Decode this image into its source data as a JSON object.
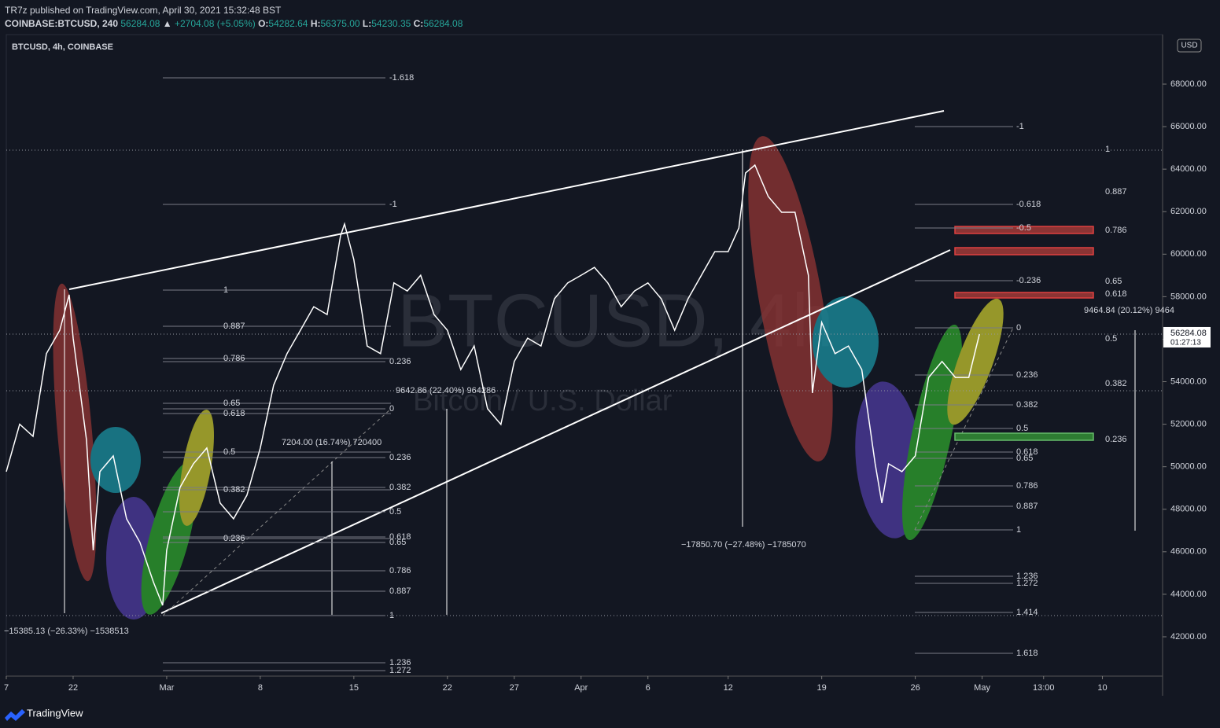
{
  "header": {
    "publisher": "TR7z published on TradingView.com, April 30, 2021 15:32:48 BST",
    "symbol": "COINBASE:BTCUSD, 240",
    "last": "56284.08",
    "change": "+2704.08 (+5.05%)",
    "o_label": "O:",
    "o": "54282.64",
    "h_label": "H:",
    "h": "56375.00",
    "l_label": "L:",
    "l": "54230.35",
    "c_label": "C:",
    "c": "56284.08"
  },
  "footer": {
    "brand": "TradingView"
  },
  "chart_data": {
    "type": "line",
    "title": "BTCUSD, 4h, COINBASE",
    "watermark": "BTCUSD, 4h",
    "watermark_sub": "Bitcoin / U.S. Dollar",
    "currency": "USD",
    "price_tag": "56284.08",
    "countdown": "01:27:13",
    "color": "#ffffff",
    "x": [
      17,
      18,
      19,
      20,
      21,
      21.7,
      22,
      23,
      23.5,
      24,
      25,
      26,
      27,
      28,
      28.7,
      29,
      30,
      31,
      32,
      33,
      34,
      35,
      36,
      37,
      38,
      39,
      40,
      41,
      42,
      42.3,
      43,
      44,
      45,
      46,
      47,
      48,
      49,
      50,
      51,
      52,
      53,
      54,
      55,
      56,
      57,
      58,
      59,
      60,
      61,
      62,
      63,
      64,
      65,
      66,
      67,
      68,
      69,
      70,
      71,
      71.8,
      72.3,
      73,
      74,
      75,
      76,
      77,
      77.3,
      78,
      79,
      80,
      81,
      82,
      82.5,
      83,
      84,
      85,
      86,
      87,
      88,
      89,
      89.8
    ],
    "values": [
      49770,
      52000,
      51430,
      55320,
      56420,
      58090,
      56050,
      51250,
      46070,
      49770,
      50510,
      47550,
      46440,
      44590,
      43480,
      46070,
      49030,
      50140,
      50880,
      48290,
      47550,
      48660,
      50880,
      53840,
      55320,
      56420,
      57530,
      57160,
      60860,
      61420,
      59750,
      55680,
      55320,
      58650,
      58270,
      59010,
      57160,
      56420,
      54570,
      55680,
      52730,
      51990,
      54950,
      56050,
      55680,
      57900,
      58650,
      59010,
      59380,
      58650,
      57530,
      58270,
      58650,
      57900,
      56420,
      57900,
      59010,
      60120,
      60120,
      61230,
      63820,
      64190,
      62710,
      61970,
      61970,
      59010,
      53470,
      56790,
      55320,
      55680,
      54570,
      50140,
      48290,
      50140,
      49770,
      50510,
      54200,
      54950,
      54200,
      54200,
      56240
    ],
    "xlim": [
      17,
      103.5
    ],
    "ylim": [
      40150,
      70330
    ],
    "xticks": [
      {
        "value": 17,
        "label": "7"
      },
      22,
      {
        "value": 29,
        "label": "Mar"
      },
      {
        "value": 36,
        "label": "8"
      },
      {
        "value": 43,
        "label": "15"
      },
      {
        "value": 50,
        "label": "22"
      },
      {
        "value": 55,
        "label": "27"
      },
      {
        "value": 60,
        "label": "Apr"
      },
      {
        "value": 65,
        "label": "6"
      },
      {
        "value": 71,
        "label": "12"
      },
      {
        "value": 78,
        "label": "19"
      },
      {
        "value": 85,
        "label": "26"
      },
      {
        "value": 90,
        "label": "May"
      },
      {
        "value": 94.6,
        "label": "13:00"
      },
      {
        "value": 99,
        "label": "10"
      }
    ],
    "yticks": [
      {
        "value": 42000,
        "label": "42000.00"
      },
      {
        "value": 44000,
        "label": "44000.00"
      },
      {
        "value": 46000,
        "label": "46000.00"
      },
      {
        "value": 48000,
        "label": "48000.00"
      },
      {
        "value": 50000,
        "label": "50000.00"
      },
      {
        "value": 52000,
        "label": "52000.00"
      },
      {
        "value": 54000,
        "label": "54000.00"
      },
      {
        "value": 56000,
        "label": "56000.00"
      },
      {
        "value": 58000,
        "label": "58000.00"
      },
      {
        "value": 60000,
        "label": "60000.00"
      },
      {
        "value": 62000,
        "label": "62000.00"
      },
      {
        "value": 64000,
        "label": "64000.00"
      },
      {
        "value": 66000,
        "label": "66000.00"
      },
      {
        "value": 68000,
        "label": "68000.00"
      }
    ],
    "fib_sets": [
      [
        "-1.618",
        "-1",
        "0.236",
        "0",
        "0.236",
        "0.382",
        "0.5",
        "0.618",
        "0.65",
        "0.786",
        "0.887",
        "1",
        "1.236",
        "1.272"
      ],
      [
        "1",
        "0.887",
        "0.786",
        "0.65",
        "0.618",
        "0.5",
        "0.382",
        "0.236"
      ],
      [
        "-1",
        "-0.618",
        "-0.5",
        "-0.236",
        "0",
        "0.236",
        "0.382",
        "0.5",
        "0.618",
        "0.65",
        "0.786",
        "0.887",
        "1",
        "1.236",
        "1.272",
        "1.414",
        "1.618"
      ],
      [
        "1",
        "0.887",
        "0.786",
        "0.65",
        "0.618",
        "0.5",
        "0.382",
        "0.236"
      ]
    ],
    "measurements": [
      "−15385.13 (−26.33%) −1538513",
      "7204.00 (16.74%) 720400",
      "9642.86 (22.40%) 964286",
      "−17850.70 (−27.48%) −1785070",
      "9464.84 (20.12%) 9464"
    ]
  }
}
